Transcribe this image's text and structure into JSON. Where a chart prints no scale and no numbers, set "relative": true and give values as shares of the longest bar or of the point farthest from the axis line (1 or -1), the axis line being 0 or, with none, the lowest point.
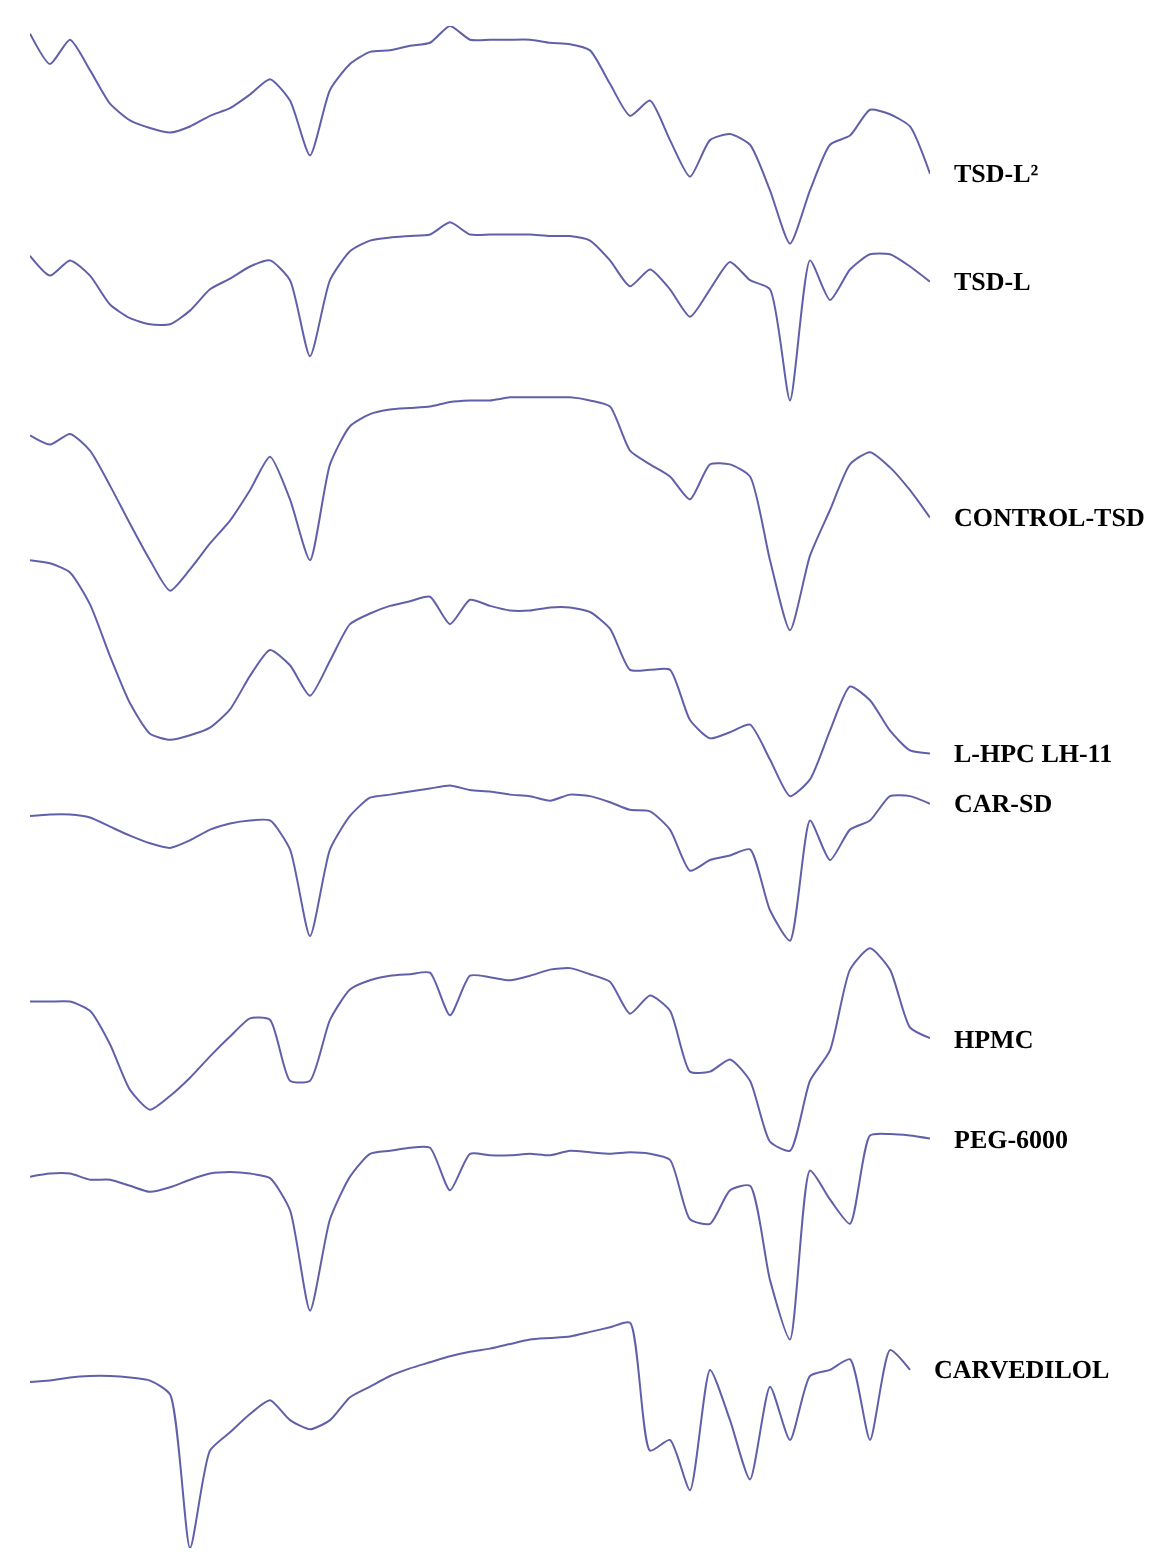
{
  "chart_data": {
    "type": "line",
    "relative": true,
    "categories": [
      null,
      null,
      null,
      null,
      null,
      null,
      null,
      null,
      null,
      null,
      null,
      null,
      null,
      null,
      null,
      null,
      null,
      null,
      null,
      null,
      null,
      null,
      null,
      null,
      null,
      null,
      null,
      null,
      null,
      null,
      null,
      null,
      null,
      null,
      null,
      null,
      null,
      null,
      null,
      null,
      null,
      null,
      null,
      null,
      null,
      null
    ],
    "series": [
      {
        "name": "TSD-L²",
        "color": "#6060aa",
        "values": [
          0.995,
          0.975,
          0.991,
          0.971,
          0.949,
          0.938,
          0.933,
          0.93,
          0.934,
          0.941,
          0.946,
          0.955,
          0.965,
          0.951,
          0.915,
          0.958,
          0.975,
          0.983,
          0.984,
          0.987,
          0.989,
          1,
          0.991,
          0.991,
          0.991,
          0.991,
          0.989,
          0.988,
          0.984,
          0.962,
          0.941,
          0.951,
          0.925,
          0.901,
          0.925,
          0.929,
          0.922,
          0.892,
          0.857,
          0.892,
          0.922,
          0.928,
          0.945,
          0.942,
          0.934,
          0.903
        ]
      },
      {
        "name": "TSD-L",
        "color": "#6060aa",
        "values": [
          0.849,
          0.836,
          0.846,
          0.836,
          0.817,
          0.808,
          0.804,
          0.804,
          0.813,
          0.827,
          0.834,
          0.842,
          0.846,
          0.833,
          0.783,
          0.833,
          0.852,
          0.859,
          0.861,
          0.862,
          0.863,
          0.871,
          0.863,
          0.863,
          0.863,
          0.863,
          0.862,
          0.862,
          0.859,
          0.846,
          0.829,
          0.84,
          0.827,
          0.809,
          0.827,
          0.845,
          0.833,
          0.827,
          0.754,
          0.846,
          0.82,
          0.84,
          0.85,
          0.85,
          0.842,
          0.832
        ]
      },
      {
        "name": "CONTROL-TSD",
        "color": "#6060aa",
        "values": [
          0.731,
          0.725,
          0.732,
          0.721,
          0.698,
          0.673,
          0.649,
          0.629,
          0.643,
          0.66,
          0.675,
          0.695,
          0.717,
          0.689,
          0.649,
          0.712,
          0.737,
          0.745,
          0.748,
          0.749,
          0.75,
          0.753,
          0.754,
          0.754,
          0.756,
          0.756,
          0.756,
          0.756,
          0.754,
          0.75,
          0.721,
          0.712,
          0.704,
          0.689,
          0.712,
          0.712,
          0.704,
          0.649,
          0.603,
          0.652,
          0.682,
          0.712,
          0.72,
          0.71,
          0.695,
          0.677
        ]
      },
      {
        "name": "L-HPC LH-11",
        "color": "#6060aa",
        "values": [
          0.649,
          0.647,
          0.641,
          0.62,
          0.586,
          0.555,
          0.535,
          0.531,
          0.534,
          0.539,
          0.551,
          0.573,
          0.59,
          0.58,
          0.56,
          0.583,
          0.607,
          0.614,
          0.619,
          0.622,
          0.625,
          0.607,
          0.623,
          0.619,
          0.616,
          0.616,
          0.618,
          0.618,
          0.615,
          0.604,
          0.577,
          0.577,
          0.577,
          0.544,
          0.532,
          0.536,
          0.541,
          0.518,
          0.494,
          0.505,
          0.537,
          0.566,
          0.557,
          0.537,
          0.524,
          0.522
        ]
      },
      {
        "name": "CAR-SD",
        "color": "#6060aa",
        "values": [
          0.481,
          0.482,
          0.482,
          0.48,
          0.474,
          0.468,
          0.463,
          0.46,
          0.465,
          0.472,
          0.476,
          0.478,
          0.478,
          0.459,
          0.402,
          0.459,
          0.481,
          0.493,
          0.495,
          0.497,
          0.499,
          0.501,
          0.498,
          0.497,
          0.495,
          0.494,
          0.491,
          0.495,
          0.494,
          0.49,
          0.485,
          0.484,
          0.472,
          0.445,
          0.452,
          0.455,
          0.459,
          0.419,
          0.399,
          0.478,
          0.452,
          0.472,
          0.478,
          0.494,
          0.494,
          0.489
        ]
      },
      {
        "name": "HPMC",
        "color": "#6060aa",
        "values": [
          0.359,
          0.359,
          0.359,
          0.353,
          0.331,
          0.301,
          0.288,
          0.297,
          0.309,
          0.323,
          0.336,
          0.348,
          0.347,
          0.307,
          0.307,
          0.347,
          0.367,
          0.373,
          0.376,
          0.377,
          0.378,
          0.35,
          0.376,
          0.375,
          0.373,
          0.376,
          0.38,
          0.381,
          0.377,
          0.372,
          0.351,
          0.363,
          0.353,
          0.313,
          0.313,
          0.321,
          0.307,
          0.267,
          0.261,
          0.307,
          0.327,
          0.38,
          0.394,
          0.38,
          0.342,
          0.335
        ]
      },
      {
        "name": "PEG-6000",
        "color": "#6060aa",
        "values": [
          0.244,
          0.246,
          0.246,
          0.242,
          0.242,
          0.238,
          0.234,
          0.237,
          0.242,
          0.246,
          0.247,
          0.246,
          0.243,
          0.222,
          0.156,
          0.216,
          0.244,
          0.259,
          0.261,
          0.263,
          0.263,
          0.235,
          0.259,
          0.258,
          0.258,
          0.259,
          0.258,
          0.261,
          0.26,
          0.259,
          0.26,
          0.259,
          0.255,
          0.216,
          0.213,
          0.235,
          0.238,
          0.176,
          0.137,
          0.248,
          0.229,
          0.213,
          0.271,
          0.272,
          0.271,
          0.269
        ]
      },
      {
        "name": "CARVEDILOL",
        "color": "#6060aa",
        "values": [
          0.109,
          0.11,
          0.112,
          0.113,
          0.113,
          0.112,
          0.11,
          0.101,
          0,
          0.064,
          0.076,
          0.088,
          0.097,
          0.084,
          0.078,
          0.084,
          0.099,
          0.106,
          0.113,
          0.118,
          0.122,
          0.126,
          0.129,
          0.131,
          0.134,
          0.137,
          0.138,
          0.139,
          0.142,
          0.145,
          0.148,
          0.064,
          0.071,
          0.038,
          0.117,
          0.084,
          0.045,
          0.106,
          0.071,
          0.113,
          0.117,
          0.124,
          0.071,
          0.13,
          0.117,
          null
        ]
      }
    ]
  }
}
